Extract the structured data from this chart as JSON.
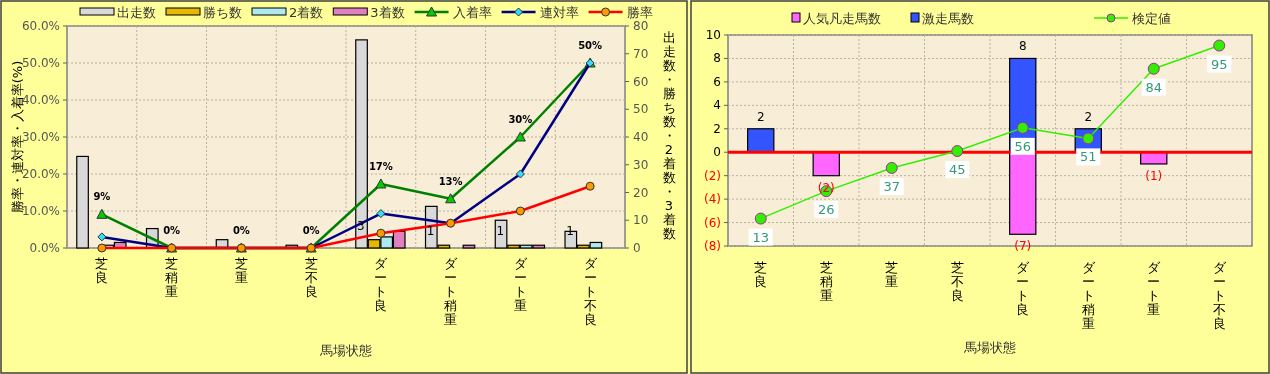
{
  "chart_data": [
    {
      "type": "bar",
      "categories": [
        "芝良",
        "芝稍重",
        "芝重",
        "芝不良",
        "ダート良",
        "ダート稍重",
        "ダート重",
        "ダート不良"
      ],
      "xlabel": "馬場状態",
      "ylabel": "勝率・連対率・入着率(%)",
      "y2label": "出走数・勝ち数・2着数・3着数",
      "ylim": [
        0,
        60
      ],
      "yticks": [
        {
          "value": 0,
          "label": "0.0%"
        },
        {
          "value": 10,
          "label": "10.0%"
        },
        {
          "value": 20,
          "label": "20.0%"
        },
        {
          "value": 30,
          "label": "30.0%"
        },
        {
          "value": 40,
          "label": "40.0%"
        },
        {
          "value": 50,
          "label": "50.0%"
        },
        {
          "value": 60,
          "label": "60.0%"
        }
      ],
      "y2lim": [
        0,
        80
      ],
      "y2ticks": [
        0,
        10,
        20,
        30,
        40,
        50,
        60,
        70,
        80
      ],
      "grid": true,
      "legend": "top",
      "series": [
        {
          "name": "出走数",
          "color": "#d9d9d9",
          "axis": "y2",
          "values": [
            33,
            7,
            3,
            1,
            75,
            15,
            10,
            6
          ]
        },
        {
          "name": "勝ち数",
          "color": "#e6b800",
          "axis": "y2",
          "values": [
            0,
            0,
            0,
            0,
            3,
            1,
            1,
            1
          ],
          "value_labels": [
            null,
            null,
            null,
            null,
            "3",
            "1",
            "1",
            "1"
          ]
        },
        {
          "name": "2着数",
          "color": "#aee8f0",
          "axis": "y2",
          "values": [
            1,
            0,
            0,
            0,
            4,
            0,
            1,
            2
          ]
        },
        {
          "name": "3着数",
          "color": "#e080c0",
          "axis": "y2",
          "values": [
            2,
            0,
            0,
            0,
            6,
            1,
            1,
            0
          ]
        },
        {
          "name": "入着率",
          "type": "line",
          "color": "#008000",
          "marker": "triangle",
          "values": [
            9.1,
            0,
            0,
            0,
            17.3,
            13.3,
            30,
            50
          ],
          "value_labels": [
            "9%",
            "0%",
            "0%",
            "0%",
            "17%",
            "13%",
            "30%",
            "50%"
          ]
        },
        {
          "name": "連対率",
          "type": "line",
          "color": "#000080",
          "marker": "diamond",
          "values": [
            3,
            0,
            0,
            0,
            9.3,
            6.7,
            20,
            50
          ]
        },
        {
          "name": "勝率",
          "type": "line",
          "color": "#ff0000",
          "marker": "circle",
          "values": [
            0,
            0,
            0,
            0,
            4,
            6.7,
            10,
            16.7
          ]
        }
      ]
    },
    {
      "type": "bar",
      "stacked": true,
      "categories": [
        "芝良",
        "芝稍重",
        "芝重",
        "芝不良",
        "ダート良",
        "ダート稍重",
        "ダート重",
        "ダート不良"
      ],
      "xlabel": "馬場状態",
      "ylim": [
        -8,
        10
      ],
      "yticks": [
        {
          "value": -8,
          "label": "(8)"
        },
        {
          "value": -6,
          "label": "(6)"
        },
        {
          "value": -4,
          "label": "(4)"
        },
        {
          "value": -2,
          "label": "(2)"
        },
        0,
        2,
        4,
        6,
        8,
        10
      ],
      "y2lim": [
        0,
        100
      ],
      "grid": true,
      "legend": "top",
      "ref_lines": [
        {
          "axis": "y",
          "value": 0,
          "color": "#ff0000"
        }
      ],
      "series": [
        {
          "name": "人気凡走馬数",
          "color": "#ff66ff",
          "values": [
            0,
            -2,
            0,
            0,
            -7,
            0,
            -1,
            0
          ],
          "value_labels": [
            null,
            "(2)",
            null,
            null,
            "(7)",
            null,
            "(1)",
            null
          ]
        },
        {
          "name": "激走馬数",
          "color": "#3355ff",
          "values": [
            2,
            0,
            0,
            0,
            8,
            2,
            0,
            0
          ],
          "value_labels": [
            "2",
            null,
            null,
            null,
            "8",
            "2",
            null,
            null
          ]
        },
        {
          "name": "検定値",
          "type": "line",
          "axis": "y2",
          "color": "#33ee00",
          "marker": "circle",
          "values": [
            13,
            26,
            37,
            45,
            56,
            51,
            84,
            95
          ],
          "data_labels": true
        }
      ]
    }
  ]
}
